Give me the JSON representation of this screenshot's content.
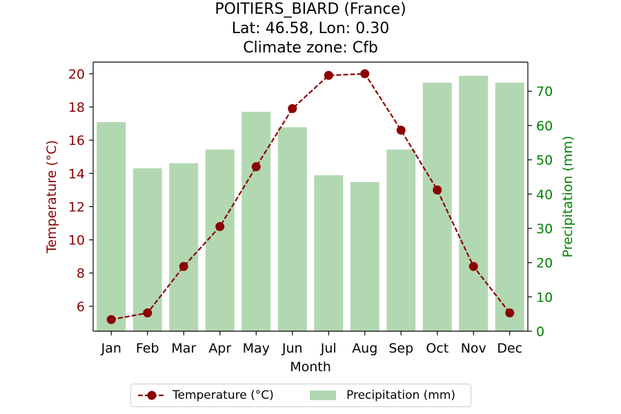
{
  "titles": {
    "line1": "POITIERS_BIARD (France)",
    "line2": "Lat: 46.58, Lon: 0.30",
    "line3": "Climate zone: Cfb"
  },
  "chart_data": {
    "type": "bar+line",
    "categories": [
      "Jan",
      "Feb",
      "Mar",
      "Apr",
      "May",
      "Jun",
      "Jul",
      "Aug",
      "Sep",
      "Oct",
      "Nov",
      "Dec"
    ],
    "xlabel": "Month",
    "temperature": {
      "name": "Temperature (°C)",
      "axis_label": "Temperature (°C)",
      "values": [
        5.2,
        5.6,
        8.4,
        10.8,
        14.4,
        17.9,
        19.9,
        20.0,
        16.6,
        13.0,
        8.4,
        5.6
      ],
      "ylim": [
        4.5,
        20.7
      ],
      "ticks": [
        6,
        8,
        10,
        12,
        14,
        16,
        18,
        20
      ],
      "color": "#8b0000",
      "style": "dashed line with circle markers"
    },
    "precipitation": {
      "name": "Precipitation (mm)",
      "axis_label": "Precipitation (mm)",
      "values": [
        61,
        47.5,
        49,
        53,
        64,
        59.5,
        45.5,
        43.5,
        53,
        72.5,
        74.5,
        72.5
      ],
      "ylim": [
        0,
        78.5
      ],
      "ticks": [
        0,
        10,
        20,
        30,
        40,
        50,
        60,
        70
      ],
      "color": "#b2d8b2",
      "axis_color": "#008000"
    },
    "grid": false,
    "legend_position": "bottom-center"
  }
}
